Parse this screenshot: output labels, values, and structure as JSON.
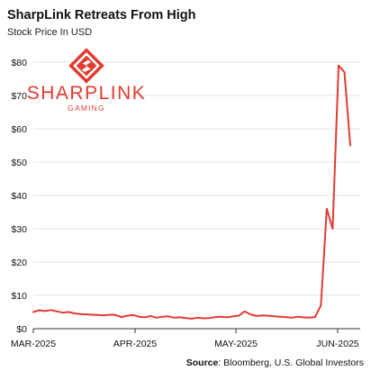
{
  "header": {
    "title": "SharpLink Retreats From High",
    "subtitle": "Stock Price In USD"
  },
  "logo": {
    "name": "SHARPLINK",
    "tagline": "GAMING",
    "color": "#e03c31"
  },
  "source": {
    "label": "Source",
    "text": ": Bloomberg, U.S. Global Investors"
  },
  "chart_data": {
    "type": "line",
    "title": "SharpLink Retreats From High",
    "subtitle": "Stock Price In USD",
    "xlabel": "",
    "ylabel": "",
    "ylim": [
      0,
      80
    ],
    "yticks": [
      0,
      10,
      20,
      30,
      40,
      50,
      60,
      70,
      80
    ],
    "ytick_labels": [
      "$0",
      "$10",
      "$20",
      "$30",
      "$40",
      "$50",
      "$60",
      "$70",
      "$80"
    ],
    "xticks": [
      "MAR-2025",
      "APR-2025",
      "MAY-2025",
      "JUN-2025"
    ],
    "grid": true,
    "legend": "none",
    "line_color": "#e03c31",
    "series": [
      {
        "values": [
          5.0,
          5.5,
          5.3,
          5.6,
          5.2,
          4.8,
          5.0,
          4.6,
          4.4,
          4.3,
          4.2,
          4.1,
          4.0,
          4.2,
          4.1,
          3.5,
          3.9,
          4.1,
          3.6,
          3.4,
          3.8,
          3.3,
          3.6,
          3.7,
          3.3,
          3.4,
          3.2,
          3.0,
          3.3,
          3.1,
          3.2,
          3.5,
          3.6,
          3.4,
          3.7,
          3.9,
          5.2,
          4.3,
          3.8,
          4.0,
          3.9,
          3.7,
          3.6,
          3.5,
          3.3,
          3.6,
          3.4,
          3.3,
          3.5,
          7.0,
          36.0,
          30.0,
          79.0,
          77.0,
          55.0
        ]
      }
    ]
  }
}
